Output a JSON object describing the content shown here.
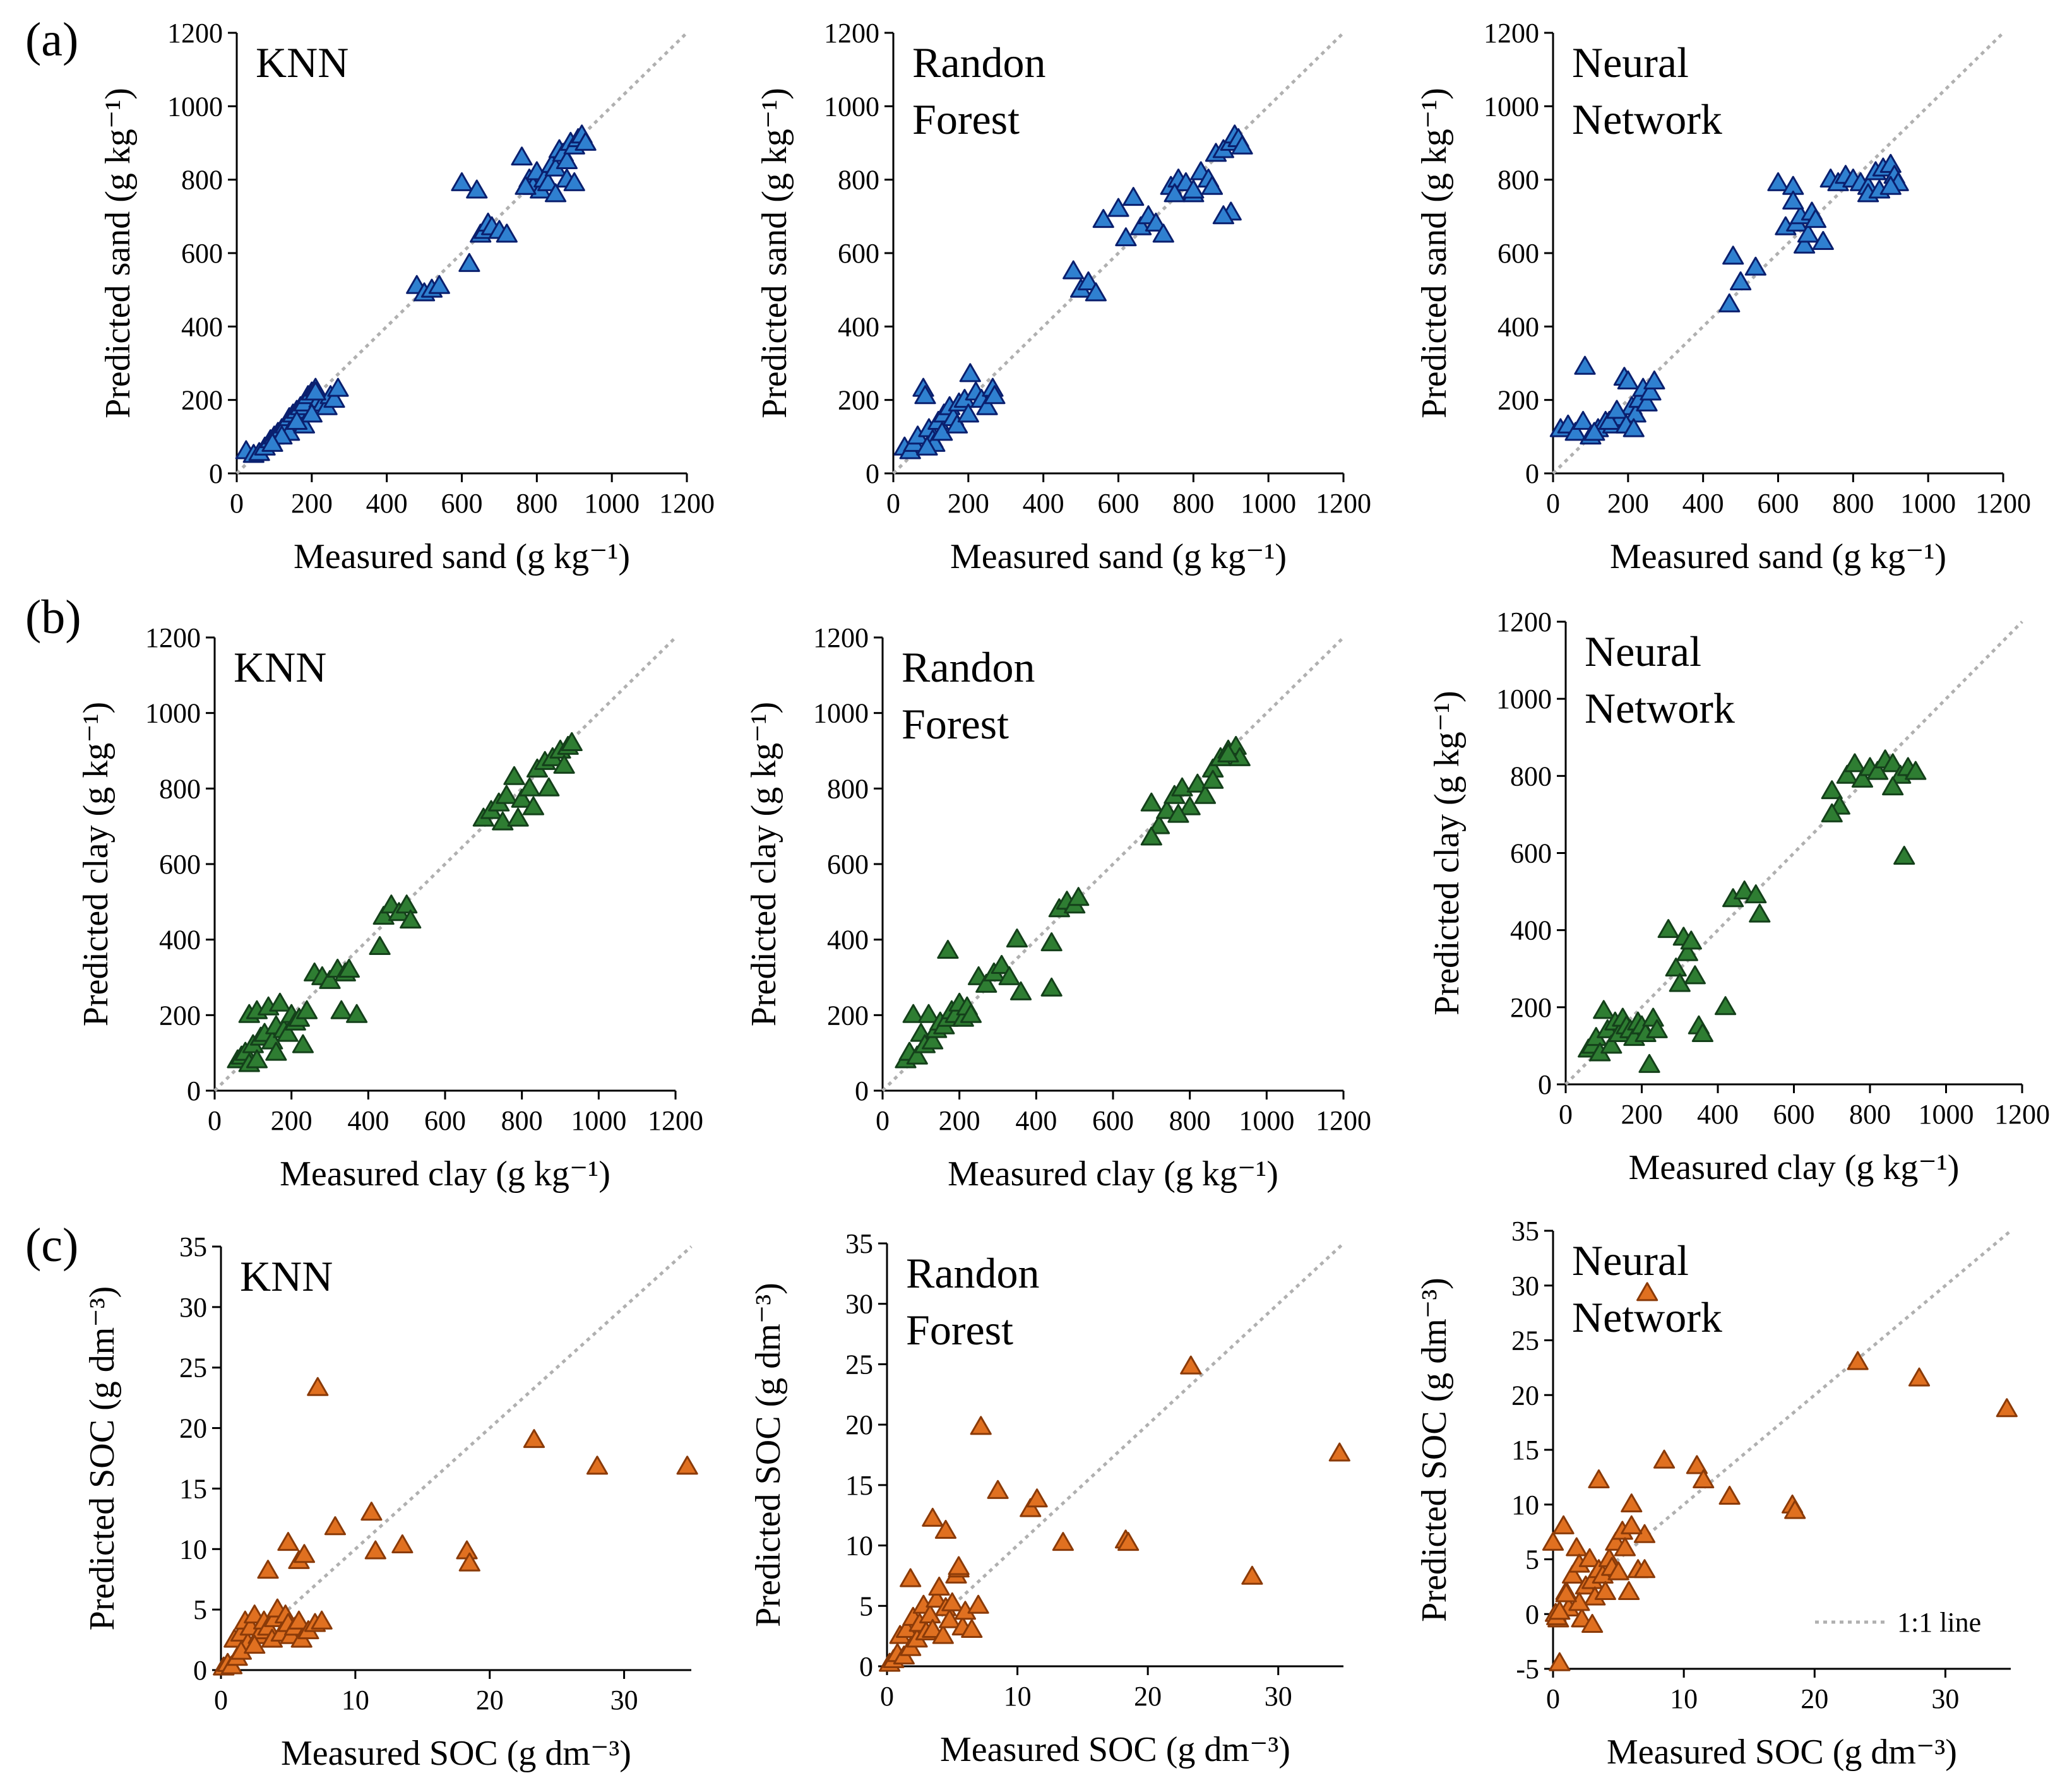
{
  "row_labels": [
    "(a)",
    "(b)",
    "(c)"
  ],
  "legend_label": "1:1 line",
  "colors": {
    "sand_fill": "#2f80d0",
    "sand_stroke": "#0a1f6e",
    "clay_fill": "#2e7d32",
    "clay_stroke": "#14401a",
    "soc_fill": "#e07020",
    "soc_stroke": "#8a3a08",
    "one_to_one": "#b0b0b0",
    "axis": "#000000"
  },
  "chart_data": [
    {
      "id": "sand-knn",
      "type": "scatter",
      "model": [
        "KNN"
      ],
      "xlabel": "Measured sand (g kg⁻¹)",
      "ylabel": "Predicted sand (g kg⁻¹)",
      "xlim": [
        0,
        1200
      ],
      "ylim": [
        0,
        1200
      ],
      "xticks": [
        0,
        200,
        400,
        600,
        800,
        1000,
        1200
      ],
      "yticks": [
        0,
        200,
        400,
        600,
        800,
        1000,
        1200
      ],
      "color": "sand",
      "x": [
        25,
        45,
        60,
        75,
        90,
        100,
        110,
        120,
        130,
        140,
        150,
        160,
        170,
        180,
        190,
        200,
        210,
        220,
        230,
        240,
        250,
        260,
        270,
        140,
        180,
        200,
        160,
        120,
        95,
        210,
        480,
        500,
        520,
        540,
        600,
        640,
        650,
        660,
        670,
        680,
        700,
        720,
        760,
        780,
        790,
        800,
        810,
        820,
        830,
        840,
        850,
        860,
        870,
        880,
        890,
        900,
        910,
        920,
        930,
        770,
        850,
        880,
        900,
        620
      ],
      "y": [
        60,
        50,
        55,
        70,
        90,
        100,
        110,
        120,
        130,
        150,
        160,
        170,
        180,
        190,
        210,
        220,
        230,
        200,
        190,
        180,
        210,
        200,
        230,
        110,
        130,
        160,
        140,
        100,
        80,
        220,
        510,
        490,
        500,
        510,
        790,
        770,
        650,
        660,
        680,
        670,
        660,
        650,
        860,
        800,
        780,
        820,
        770,
        800,
        790,
        840,
        830,
        880,
        870,
        850,
        900,
        890,
        910,
        920,
        900,
        780,
        760,
        800,
        790,
        570
      ]
    },
    {
      "id": "sand-rf",
      "type": "scatter",
      "model": [
        "Randon",
        "Forest"
      ],
      "xlabel": "Measured sand (g kg⁻¹)",
      "ylabel": "Predicted sand (g kg⁻¹)",
      "xlim": [
        0,
        1200
      ],
      "ylim": [
        0,
        1200
      ],
      "xticks": [
        0,
        200,
        400,
        600,
        800,
        1000,
        1200
      ],
      "yticks": [
        0,
        200,
        400,
        600,
        800,
        1000,
        1200
      ],
      "color": "sand",
      "x": [
        30,
        45,
        55,
        65,
        80,
        85,
        95,
        105,
        120,
        135,
        150,
        160,
        175,
        190,
        205,
        220,
        235,
        250,
        265,
        270,
        110,
        130,
        170,
        200,
        90,
        480,
        500,
        520,
        540,
        560,
        600,
        620,
        640,
        660,
        680,
        700,
        720,
        740,
        760,
        780,
        800,
        820,
        840,
        860,
        880,
        900,
        910,
        920,
        930,
        900,
        880,
        850,
        800,
        750
      ],
      "y": [
        70,
        60,
        80,
        100,
        230,
        210,
        120,
        90,
        140,
        160,
        180,
        150,
        190,
        200,
        270,
        220,
        200,
        180,
        230,
        210,
        80,
        110,
        130,
        160,
        70,
        550,
        500,
        520,
        490,
        690,
        720,
        640,
        750,
        670,
        700,
        680,
        650,
        780,
        800,
        790,
        760,
        820,
        800,
        870,
        880,
        900,
        920,
        910,
        890,
        710,
        700,
        780,
        770,
        760
      ]
    },
    {
      "id": "sand-nn",
      "type": "scatter",
      "model": [
        "Neural",
        "Network"
      ],
      "xlabel": "Measured sand (g kg⁻¹)",
      "ylabel": "Predicted sand (g kg⁻¹)",
      "xlim": [
        0,
        1200
      ],
      "ylim": [
        0,
        1200
      ],
      "xticks": [
        0,
        200,
        400,
        600,
        800,
        1000,
        1200
      ],
      "yticks": [
        0,
        200,
        400,
        600,
        800,
        1000,
        1200
      ],
      "color": "sand",
      "x": [
        20,
        40,
        60,
        80,
        85,
        100,
        120,
        140,
        160,
        180,
        190,
        200,
        210,
        220,
        230,
        240,
        250,
        260,
        270,
        150,
        170,
        195,
        215,
        110,
        470,
        480,
        500,
        540,
        600,
        620,
        640,
        650,
        660,
        670,
        680,
        690,
        700,
        720,
        740,
        760,
        780,
        800,
        820,
        840,
        860,
        880,
        900,
        910,
        920,
        840,
        870,
        900,
        640
      ],
      "y": [
        120,
        130,
        110,
        140,
        290,
        100,
        120,
        140,
        130,
        150,
        260,
        250,
        180,
        160,
        200,
        230,
        190,
        220,
        250,
        140,
        170,
        130,
        120,
        110,
        460,
        590,
        520,
        560,
        790,
        670,
        780,
        680,
        700,
        620,
        650,
        710,
        690,
        630,
        800,
        790,
        810,
        800,
        790,
        780,
        820,
        830,
        840,
        810,
        790,
        760,
        770,
        780,
        740
      ]
    },
    {
      "id": "clay-knn",
      "type": "scatter",
      "model": [
        "KNN"
      ],
      "xlabel": "Measured clay (g kg⁻¹)",
      "ylabel": "Predicted clay (g kg⁻¹)",
      "xlim": [
        0,
        1200
      ],
      "ylim": [
        0,
        1200
      ],
      "xticks": [
        0,
        200,
        400,
        600,
        800,
        1000,
        1200
      ],
      "yticks": [
        0,
        200,
        400,
        600,
        800,
        1000,
        1200
      ],
      "color": "clay",
      "x": [
        60,
        70,
        80,
        90,
        100,
        110,
        120,
        130,
        140,
        150,
        160,
        170,
        180,
        190,
        200,
        210,
        220,
        230,
        240,
        90,
        110,
        160,
        260,
        280,
        300,
        320,
        340,
        350,
        330,
        370,
        430,
        440,
        460,
        480,
        500,
        510,
        700,
        720,
        740,
        760,
        780,
        800,
        820,
        840,
        860,
        880,
        900,
        920,
        930,
        750,
        790,
        830,
        870,
        910
      ],
      "y": [
        80,
        90,
        100,
        200,
        120,
        210,
        140,
        150,
        220,
        130,
        170,
        230,
        160,
        150,
        200,
        180,
        190,
        120,
        210,
        70,
        80,
        100,
        310,
        300,
        290,
        320,
        310,
        320,
        210,
        200,
        380,
        460,
        490,
        470,
        490,
        450,
        720,
        740,
        760,
        780,
        830,
        770,
        800,
        850,
        870,
        880,
        900,
        910,
        920,
        710,
        720,
        750,
        800,
        860
      ]
    },
    {
      "id": "clay-rf",
      "type": "scatter",
      "model": [
        "Randon",
        "Forest"
      ],
      "xlabel": "Measured clay (g kg⁻¹)",
      "ylabel": "Predicted clay (g kg⁻¹)",
      "xlim": [
        0,
        1200
      ],
      "ylim": [
        0,
        1200
      ],
      "xticks": [
        0,
        200,
        400,
        600,
        800,
        1000,
        1200
      ],
      "yticks": [
        0,
        200,
        400,
        600,
        800,
        1000,
        1200
      ],
      "color": "clay",
      "x": [
        60,
        70,
        80,
        90,
        100,
        110,
        120,
        130,
        140,
        150,
        160,
        170,
        180,
        190,
        200,
        210,
        220,
        230,
        250,
        270,
        290,
        310,
        330,
        350,
        360,
        170,
        440,
        460,
        480,
        500,
        510,
        440,
        700,
        720,
        740,
        760,
        780,
        800,
        820,
        840,
        860,
        880,
        900,
        920,
        930,
        700,
        860,
        900,
        770
      ],
      "y": [
        80,
        100,
        200,
        90,
        150,
        120,
        200,
        130,
        160,
        180,
        170,
        190,
        210,
        200,
        230,
        190,
        220,
        200,
        300,
        280,
        310,
        330,
        300,
        400,
        260,
        370,
        390,
        480,
        500,
        490,
        510,
        270,
        760,
        700,
        740,
        780,
        800,
        750,
        810,
        780,
        850,
        880,
        900,
        910,
        880,
        670,
        820,
        890,
        730
      ]
    },
    {
      "id": "clay-nn",
      "type": "scatter",
      "model": [
        "Neural",
        "Network"
      ],
      "xlabel": "Measured clay (g kg⁻¹)",
      "ylabel": "Predicted clay (g kg⁻¹)",
      "xlim": [
        0,
        1200
      ],
      "ylim": [
        0,
        1200
      ],
      "xticks": [
        0,
        200,
        400,
        600,
        800,
        1000,
        1200
      ],
      "yticks": [
        0,
        200,
        400,
        600,
        800,
        1000,
        1200
      ],
      "color": "clay",
      "x": [
        60,
        70,
        80,
        90,
        100,
        110,
        120,
        130,
        140,
        150,
        160,
        170,
        180,
        190,
        200,
        210,
        220,
        230,
        240,
        270,
        290,
        300,
        310,
        320,
        330,
        340,
        350,
        360,
        420,
        440,
        470,
        500,
        510,
        700,
        720,
        740,
        760,
        780,
        800,
        820,
        840,
        860,
        880,
        900,
        920,
        890,
        700,
        860
      ],
      "y": [
        90,
        100,
        120,
        80,
        190,
        140,
        100,
        160,
        130,
        170,
        150,
        140,
        120,
        160,
        150,
        130,
        50,
        170,
        140,
        400,
        300,
        260,
        380,
        340,
        370,
        280,
        150,
        130,
        200,
        480,
        500,
        490,
        440,
        760,
        720,
        800,
        830,
        790,
        820,
        810,
        840,
        830,
        800,
        820,
        810,
        590,
        700,
        770
      ]
    },
    {
      "id": "soc-knn",
      "type": "scatter",
      "model": [
        "KNN"
      ],
      "xlabel": "Measured SOC (g dm⁻³)",
      "ylabel": "Predicted SOC (g dm⁻³)",
      "xlim": [
        0,
        35
      ],
      "ylim": [
        0,
        35
      ],
      "xticks": [
        0,
        10,
        20,
        30
      ],
      "yticks": [
        0,
        5,
        10,
        15,
        20,
        25,
        30,
        35
      ],
      "color": "soc",
      "x": [
        0.2,
        0.5,
        0.8,
        1.0,
        1.2,
        1.5,
        1.8,
        2.0,
        2.2,
        2.5,
        2.8,
        3.0,
        3.2,
        3.5,
        3.8,
        4.0,
        4.2,
        4.5,
        4.8,
        5.0,
        5.2,
        5.5,
        5.8,
        6.0,
        6.5,
        7.0,
        7.5,
        3.5,
        5.0,
        5.8,
        6.2,
        7.2,
        8.5,
        11.2,
        11.5,
        13.5,
        18.3,
        18.5,
        23.3,
        28.0,
        34.7,
        1.5,
        2.5
      ],
      "y": [
        0.2,
        0.5,
        0.3,
        2.5,
        1.0,
        3.0,
        4.0,
        2.2,
        3.5,
        4.5,
        2.8,
        3.2,
        4.0,
        3.5,
        2.5,
        4.2,
        5.0,
        3.0,
        4.5,
        3.8,
        2.8,
        3.5,
        4.0,
        2.5,
        3.2,
        3.8,
        4.0,
        8.2,
        10.5,
        9.0,
        9.5,
        23.3,
        11.8,
        13.0,
        9.8,
        10.3,
        9.8,
        8.8,
        19.0,
        16.8,
        16.8,
        1.5,
        2.0
      ]
    },
    {
      "id": "soc-rf",
      "type": "scatter",
      "model": [
        "Randon",
        "Forest"
      ],
      "xlabel": "Measured SOC (g dm⁻³)",
      "ylabel": "Predicted SOC (g dm⁻³)",
      "xlim": [
        0,
        35
      ],
      "ylim": [
        0,
        35
      ],
      "xticks": [
        0,
        10,
        20,
        30
      ],
      "yticks": [
        0,
        5,
        10,
        15,
        20,
        25,
        30,
        35
      ],
      "color": "soc",
      "x": [
        0.2,
        0.5,
        0.8,
        1.0,
        1.3,
        1.5,
        1.8,
        2.0,
        2.3,
        2.5,
        2.8,
        3.0,
        3.3,
        3.5,
        3.8,
        4.0,
        4.3,
        4.5,
        4.8,
        5.0,
        5.3,
        5.5,
        5.8,
        6.0,
        6.5,
        7.0,
        1.8,
        3.5,
        4.5,
        5.5,
        7.2,
        8.5,
        11.0,
        11.5,
        13.5,
        18.3,
        18.5,
        23.3,
        28.0,
        34.7
      ],
      "y": [
        0.2,
        0.5,
        1.0,
        2.5,
        0.8,
        3.0,
        1.5,
        4.0,
        2.2,
        3.5,
        5.0,
        2.8,
        4.2,
        3.0,
        5.5,
        6.5,
        2.5,
        4.8,
        3.8,
        5.2,
        7.5,
        8.0,
        3.2,
        4.5,
        3.0,
        5.0,
        7.2,
        12.2,
        11.2,
        8.2,
        19.8,
        14.5,
        13.0,
        13.8,
        10.2,
        10.4,
        10.2,
        24.8,
        7.4,
        17.6
      ]
    },
    {
      "id": "soc-nn",
      "type": "scatter",
      "model": [
        "Neural",
        "Network"
      ],
      "xlabel": "Measured SOC (g dm⁻³)",
      "ylabel": "Predicted SOC (g dm⁻³)",
      "xlim": [
        0,
        35
      ],
      "ylim": [
        -5,
        35
      ],
      "xticks": [
        0,
        10,
        20,
        30
      ],
      "yticks": [
        -5,
        0,
        5,
        10,
        15,
        20,
        25,
        30,
        35
      ],
      "color": "soc",
      "x": [
        0.0,
        0.2,
        0.4,
        0.5,
        0.8,
        1.0,
        1.2,
        1.5,
        1.8,
        2.0,
        2.2,
        2.5,
        2.8,
        3.0,
        3.2,
        3.5,
        3.8,
        4.0,
        4.3,
        4.5,
        4.8,
        5.0,
        5.3,
        5.5,
        5.8,
        6.0,
        6.5,
        7.0,
        7.2,
        0.3,
        0.5,
        2.0,
        3.5,
        6.0,
        7.0,
        8.5,
        11.0,
        11.5,
        13.5,
        18.3,
        18.5,
        23.3,
        28.0,
        34.7,
        1.0,
        3.0
      ],
      "y": [
        6.5,
        0.0,
        -0.5,
        -4.5,
        8.0,
        2.0,
        0.5,
        3.5,
        6.0,
        4.5,
        -0.5,
        2.5,
        5.0,
        3.0,
        1.5,
        4.0,
        3.5,
        2.0,
        5.0,
        4.2,
        6.5,
        3.8,
        7.5,
        6.0,
        2.0,
        10.0,
        4.0,
        7.2,
        29.3,
        -0.3,
        0.2,
        1.0,
        12.2,
        8.0,
        4.0,
        14.0,
        13.5,
        12.2,
        10.7,
        9.9,
        9.4,
        23.0,
        21.5,
        18.7,
        1.8,
        -1.0
      ]
    }
  ]
}
